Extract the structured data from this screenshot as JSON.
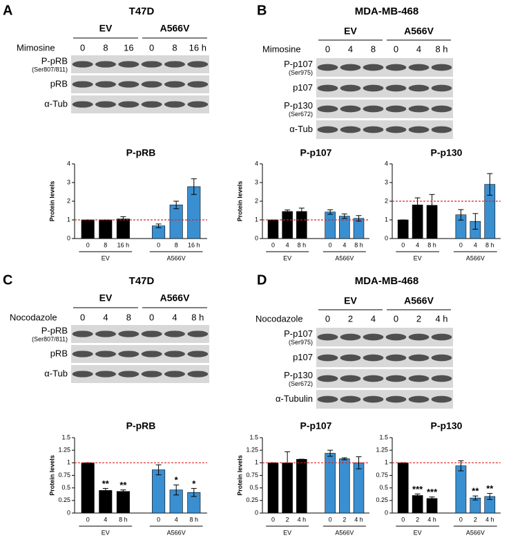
{
  "panels": [
    {
      "label": "A",
      "title": "T47D",
      "groups": [
        "EV",
        "A566V"
      ],
      "treatment": "Mimosine",
      "lanes": [
        "0",
        "8",
        "16",
        "0",
        "8",
        "16 h"
      ],
      "blots": [
        {
          "name": "P-pRB",
          "site": "(Ser807/811)"
        },
        {
          "name": "pRB"
        },
        {
          "name": "α-Tub"
        }
      ]
    },
    {
      "label": "B",
      "title": "MDA-MB-468",
      "groups": [
        "EV",
        "A566V"
      ],
      "treatment": "Mimosine",
      "lanes": [
        "0",
        "4",
        "8",
        "0",
        "4",
        "8 h"
      ],
      "blots": [
        {
          "name": "P-p107",
          "site": "(Ser975)"
        },
        {
          "name": "p107"
        },
        {
          "name": "P-p130",
          "site": "(Ser672)"
        },
        {
          "name": "α-Tub"
        }
      ]
    },
    {
      "label": "C",
      "title": "T47D",
      "groups": [
        "EV",
        "A566V"
      ],
      "treatment": "Nocodazole",
      "lanes": [
        "0",
        "4",
        "8",
        "0",
        "4",
        "8 h"
      ],
      "blots": [
        {
          "name": "P-pRB",
          "site": "(Ser807/811)"
        },
        {
          "name": "pRB"
        },
        {
          "name": "α-Tub"
        }
      ]
    },
    {
      "label": "D",
      "title": "MDA-MB-468",
      "groups": [
        "EV",
        "A566V"
      ],
      "treatment": "Nocodazole",
      "lanes": [
        "0",
        "2",
        "4",
        "0",
        "2",
        "4 h"
      ],
      "blots": [
        {
          "name": "P-p107",
          "site": "(Ser975)"
        },
        {
          "name": "p107"
        },
        {
          "name": "P-p130",
          "site": "(Ser672)"
        },
        {
          "name": "α-Tubulin"
        }
      ]
    }
  ],
  "chart_data": [
    {
      "type": "bar",
      "title": "P-pRB",
      "ylabel": "Protein levels",
      "categories": [
        "0",
        "8",
        "16 h",
        "0",
        "8",
        "16 h"
      ],
      "groups": [
        "EV",
        "A566V"
      ],
      "values": [
        1,
        1,
        1.05,
        0.68,
        1.8,
        2.78
      ],
      "errors": [
        0,
        0,
        0.12,
        0.1,
        0.2,
        0.42
      ],
      "colors": [
        "#000000",
        "#000000",
        "#000000",
        "#3a8fd0",
        "#3a8fd0",
        "#3a8fd0"
      ],
      "ylim": [
        0,
        4
      ],
      "yticks": [
        0,
        1,
        2,
        3,
        4
      ],
      "reference_line": {
        "value": 1,
        "color": "#e02020"
      }
    },
    {
      "type": "bar",
      "title": "P-p107",
      "ylabel": "Protein levels",
      "categories": [
        "0",
        "4",
        "8 h",
        "0",
        "4",
        "8 h"
      ],
      "groups": [
        "EV",
        "A566V"
      ],
      "values": [
        1,
        1.45,
        1.45,
        1.42,
        1.2,
        1.08
      ],
      "errors": [
        0,
        0.08,
        0.18,
        0.12,
        0.12,
        0.15
      ],
      "colors": [
        "#000000",
        "#000000",
        "#000000",
        "#3a8fd0",
        "#3a8fd0",
        "#3a8fd0"
      ],
      "ylim": [
        0,
        4
      ],
      "yticks": [
        0,
        1,
        2,
        3,
        4
      ],
      "reference_line": {
        "value": 1,
        "color": "#e02020"
      }
    },
    {
      "type": "bar",
      "title": "P-p130",
      "categories": [
        "0",
        "4",
        "8 h",
        "0",
        "4",
        "8 h"
      ],
      "groups": [
        "EV",
        "A566V"
      ],
      "values": [
        1,
        1.8,
        1.78,
        1.27,
        0.92,
        2.9
      ],
      "errors": [
        0,
        0.38,
        0.58,
        0.28,
        0.42,
        0.58
      ],
      "colors": [
        "#000000",
        "#000000",
        "#000000",
        "#3a8fd0",
        "#3a8fd0",
        "#3a8fd0"
      ],
      "ylim": [
        0,
        4
      ],
      "yticks": [
        0,
        1,
        2,
        3,
        4
      ],
      "reference_line": {
        "value": 2,
        "color": "#e02020"
      }
    },
    {
      "type": "bar",
      "title": "P-pRB",
      "ylabel": "Protein levels",
      "categories": [
        "0",
        "4",
        "8 h",
        "0",
        "4",
        "8 h"
      ],
      "groups": [
        "EV",
        "A566V"
      ],
      "values": [
        1,
        0.45,
        0.43,
        0.86,
        0.46,
        0.41
      ],
      "errors": [
        0,
        0.04,
        0.03,
        0.1,
        0.1,
        0.08
      ],
      "annotations": [
        null,
        "**",
        "**",
        null,
        "*",
        "*"
      ],
      "colors": [
        "#000000",
        "#000000",
        "#000000",
        "#3a8fd0",
        "#3a8fd0",
        "#3a8fd0"
      ],
      "ylim": [
        0,
        1.5
      ],
      "yticks": [
        0,
        0.25,
        0.5,
        0.75,
        1,
        1.25,
        1.5
      ],
      "reference_line": {
        "value": 1,
        "color": "#e02020"
      }
    },
    {
      "type": "bar",
      "title": "P-p107",
      "ylabel": "Protein levels",
      "categories": [
        "0",
        "2",
        "4 h",
        "0",
        "2",
        "4 h"
      ],
      "groups": [
        "EV",
        "A566V"
      ],
      "values": [
        1,
        1,
        1.07,
        1.19,
        1.08,
        1.0
      ],
      "errors": [
        0,
        0.22,
        0,
        0.06,
        0.02,
        0.12
      ],
      "colors": [
        "#000000",
        "#000000",
        "#000000",
        "#3a8fd0",
        "#3a8fd0",
        "#3a8fd0"
      ],
      "ylim": [
        0,
        1.5
      ],
      "yticks": [
        0,
        0.25,
        0.5,
        0.75,
        1,
        1.25,
        1.5
      ],
      "reference_line": {
        "value": 1,
        "color": "#e02020"
      }
    },
    {
      "type": "bar",
      "title": "P-p130",
      "categories": [
        "0",
        "2",
        "4 h",
        "0",
        "2",
        "4 h"
      ],
      "groups": [
        "EV",
        "A566V"
      ],
      "values": [
        1,
        0.35,
        0.29,
        0.94,
        0.3,
        0.33
      ],
      "errors": [
        0,
        0.03,
        0.03,
        0.1,
        0.04,
        0.06
      ],
      "annotations": [
        null,
        "***",
        "***",
        null,
        "**",
        "**"
      ],
      "colors": [
        "#000000",
        "#000000",
        "#000000",
        "#3a8fd0",
        "#3a8fd0",
        "#3a8fd0"
      ],
      "ylim": [
        0,
        1.5
      ],
      "yticks": [
        0,
        0.25,
        0.5,
        0.75,
        1,
        1.25,
        1.5
      ],
      "reference_line": {
        "value": 1,
        "color": "#e02020"
      }
    }
  ]
}
